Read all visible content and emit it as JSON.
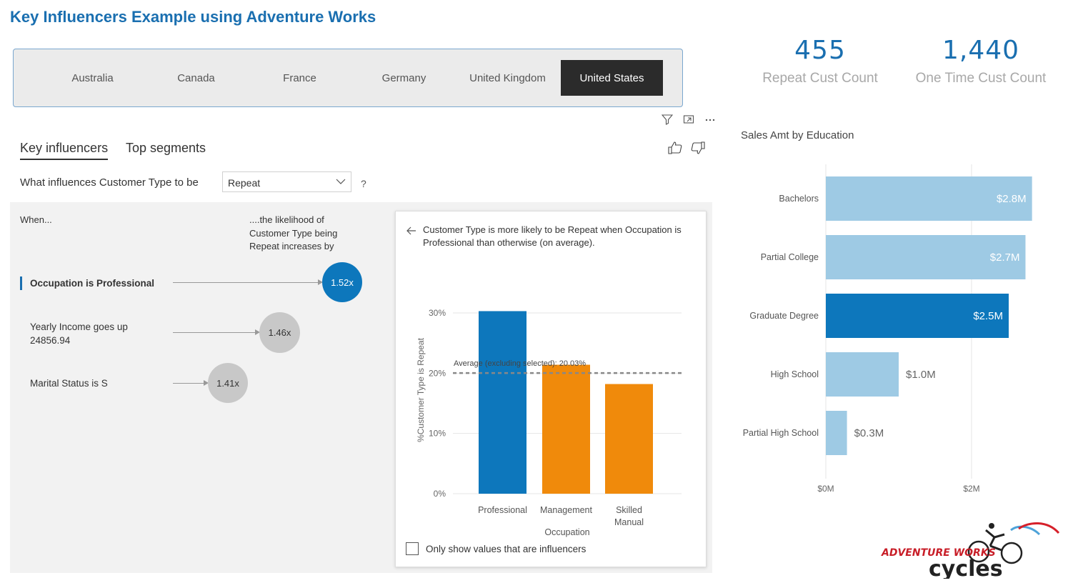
{
  "page": {
    "title": "Key Influencers Example using Adventure Works"
  },
  "slicer": {
    "items": [
      "Australia",
      "Canada",
      "France",
      "Germany",
      "United Kingdom",
      "United States"
    ],
    "selected": "United States"
  },
  "kpis": [
    {
      "value": "455",
      "label": "Repeat Cust Count"
    },
    {
      "value": "1,440",
      "label": "One Time Cust Count"
    }
  ],
  "visual_header": {
    "icons": [
      "filter-icon",
      "focus-mode-icon",
      "more-options-icon"
    ]
  },
  "key_influencers": {
    "tabs": [
      "Key influencers",
      "Top segments"
    ],
    "active_tab": "Key influencers",
    "question": "What influences Customer Type to be",
    "dropdown_value": "Repeat",
    "help": "?",
    "when_label": "When...",
    "likelihood_label": "....the likelihood of Customer Type being Repeat increases by",
    "influencers": [
      {
        "label": "Occupation is Professional",
        "value": "1.52x",
        "selected": true
      },
      {
        "label": "Yearly Income goes up 24856.94",
        "value": "1.46x",
        "selected": false
      },
      {
        "label": "Marital Status is S",
        "value": "1.41x",
        "selected": false
      }
    ],
    "colors": {
      "selected": "#0d77bc",
      "other": "#c8c8c8",
      "highlight": "#0d77bc",
      "compare": "#f08a0b"
    }
  },
  "detail": {
    "description": "Customer Type is more likely to be Repeat when Occupation is Professional than otherwise (on average).",
    "checkbox_label": "Only show values that are influencers",
    "checkbox_checked": false
  },
  "chart_data": [
    {
      "type": "bar",
      "categories": [
        "Professional",
        "Management",
        "Skilled Manual"
      ],
      "values": [
        30.3,
        21.4,
        18.2
      ],
      "highlight_index": 0,
      "xlabel": "Occupation",
      "ylabel": "%Customer Type is Repeat",
      "yticks": [
        "0%",
        "10%",
        "20%",
        "30%"
      ],
      "ylim": [
        0,
        30
      ],
      "reference_line": {
        "label": "Average (excluding selected): 20.03%",
        "value": 20.03
      }
    },
    {
      "type": "bar",
      "orientation": "horizontal",
      "title": "Sales Amt by Education",
      "categories": [
        "Bachelors",
        "Partial College",
        "Graduate Degree",
        "High School",
        "Partial High School"
      ],
      "values": [
        2.83,
        2.74,
        2.51,
        1.0,
        0.29
      ],
      "data_labels": [
        "$2.8M",
        "$2.7M",
        "$2.5M",
        "$1.0M",
        "$0.3M"
      ],
      "highlight_index": 2,
      "xticks": [
        "$0M",
        "$2M"
      ],
      "xlim": [
        0,
        2.95
      ],
      "colors": {
        "normal": "#9ecae4",
        "highlight": "#0d77bc"
      }
    }
  ],
  "logo": {
    "line1": "ADVENTURE WORKS",
    "line2": "cycles"
  }
}
